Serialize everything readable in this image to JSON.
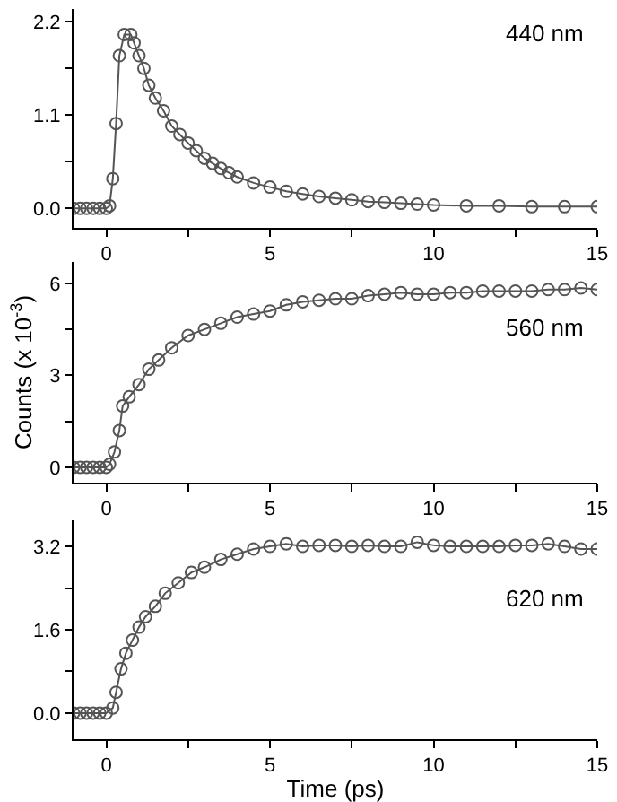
{
  "chart_data": [
    {
      "type": "line",
      "annotations": [
        "440 nm"
      ],
      "marker": "circle",
      "line_style": "solid",
      "grid": false,
      "tick_labels": "xy",
      "x": [
        -1,
        -0.8,
        -0.6,
        -0.4,
        -0.2,
        0,
        0.1,
        0.2,
        0.3,
        0.4,
        0.55,
        0.75,
        0.85,
        1,
        1.15,
        1.3,
        1.5,
        1.75,
        2,
        2.25,
        2.5,
        2.75,
        3,
        3.25,
        3.5,
        3.75,
        4,
        4.5,
        5,
        5.5,
        6,
        6.5,
        7,
        7.5,
        8,
        8.5,
        9,
        9.5,
        10,
        11,
        12,
        13,
        14,
        15
      ],
      "series": [
        {
          "color": "#555555",
          "values": [
            0,
            0,
            0,
            0,
            0,
            0,
            0.03,
            0.35,
            1.0,
            1.8,
            2.05,
            2.05,
            1.95,
            1.8,
            1.65,
            1.45,
            1.3,
            1.15,
            0.97,
            0.87,
            0.77,
            0.68,
            0.59,
            0.53,
            0.47,
            0.42,
            0.37,
            0.3,
            0.25,
            0.2,
            0.17,
            0.14,
            0.12,
            0.1,
            0.08,
            0.07,
            0.06,
            0.05,
            0.04,
            0.03,
            0.03,
            0.02,
            0.02,
            0.02
          ]
        }
      ],
      "xlim": [
        -1,
        15
      ],
      "xticks": [
        0,
        {
          "value": 2.5,
          "label": null
        },
        5,
        {
          "value": 7.5,
          "label": null
        },
        10,
        {
          "value": 12.5,
          "label": null
        },
        15
      ],
      "ylim": [
        -0.23,
        2.35
      ],
      "yticks": [
        {
          "value": 0,
          "label": "0.0"
        },
        {
          "value": 0.55,
          "label": null
        },
        {
          "value": 1.1,
          "label": "1.1"
        },
        {
          "value": 1.65,
          "label": null
        },
        {
          "value": 2.2,
          "label": "2.2"
        }
      ]
    },
    {
      "type": "line",
      "annotations": [
        "560 nm"
      ],
      "ylabel": "Counts (x 10$^{-3}$)",
      "marker": "circle",
      "line_style": "solid",
      "grid": false,
      "tick_labels": "xy",
      "x": [
        -1,
        -0.8,
        -0.6,
        -0.4,
        -0.2,
        0,
        0.1,
        0.25,
        0.4,
        0.5,
        0.7,
        1,
        1.3,
        1.6,
        2,
        2.5,
        3,
        3.5,
        4,
        4.5,
        5,
        5.5,
        6,
        6.5,
        7,
        7.5,
        8,
        8.5,
        9,
        9.5,
        10,
        10.5,
        11,
        11.5,
        12,
        12.5,
        13,
        13.5,
        14,
        14.5,
        15
      ],
      "series": [
        {
          "color": "#555555",
          "values": [
            0,
            0,
            0,
            0,
            0,
            0,
            0.1,
            0.5,
            1.2,
            2.0,
            2.3,
            2.7,
            3.2,
            3.5,
            3.9,
            4.3,
            4.5,
            4.7,
            4.9,
            5.0,
            5.1,
            5.3,
            5.4,
            5.45,
            5.5,
            5.5,
            5.6,
            5.65,
            5.7,
            5.65,
            5.65,
            5.7,
            5.7,
            5.75,
            5.75,
            5.75,
            5.75,
            5.8,
            5.8,
            5.85,
            5.8
          ]
        }
      ],
      "xlim": [
        -1,
        15
      ],
      "xticks": [
        0,
        {
          "value": 2.5,
          "label": null
        },
        5,
        {
          "value": 7.5,
          "label": null
        },
        10,
        {
          "value": 12.5,
          "label": null
        },
        15
      ],
      "ylim": [
        -0.5,
        6.7
      ],
      "yticks": [
        0,
        {
          "value": 1.5,
          "label": null
        },
        3,
        {
          "value": 4.5,
          "label": null
        },
        6
      ]
    },
    {
      "type": "line",
      "annotations": [
        "620 nm"
      ],
      "xlabel": "Time (ps)",
      "marker": "circle",
      "line_style": "solid",
      "grid": false,
      "tick_labels": "xy",
      "x": [
        -1,
        -0.8,
        -0.6,
        -0.4,
        -0.2,
        0,
        0.2,
        0.3,
        0.45,
        0.6,
        0.8,
        1,
        1.2,
        1.5,
        1.8,
        2.2,
        2.6,
        3,
        3.5,
        4,
        4.5,
        5,
        5.5,
        6,
        6.5,
        7,
        7.5,
        8,
        8.5,
        9,
        9.5,
        10,
        10.5,
        11,
        11.5,
        12,
        12.5,
        13,
        13.5,
        14,
        14.5,
        15
      ],
      "series": [
        {
          "color": "#555555",
          "values": [
            0,
            0,
            0,
            0,
            0,
            0,
            0.1,
            0.4,
            0.85,
            1.15,
            1.4,
            1.65,
            1.85,
            2.05,
            2.3,
            2.5,
            2.7,
            2.8,
            2.95,
            3.05,
            3.15,
            3.2,
            3.25,
            3.2,
            3.22,
            3.22,
            3.2,
            3.22,
            3.2,
            3.2,
            3.28,
            3.22,
            3.2,
            3.2,
            3.2,
            3.2,
            3.22,
            3.22,
            3.25,
            3.2,
            3.15,
            3.15
          ]
        }
      ],
      "xlim": [
        -1,
        15
      ],
      "xticks": [
        0,
        {
          "value": 2.5,
          "label": null
        },
        5,
        {
          "value": 7.5,
          "label": null
        },
        10,
        {
          "value": 12.5,
          "label": null
        },
        15
      ],
      "ylim": [
        -0.5,
        3.7
      ],
      "yticks": [
        {
          "value": 0,
          "label": "0.0"
        },
        {
          "value": 0.8,
          "label": null
        },
        {
          "value": 1.6,
          "label": "1.6"
        },
        {
          "value": 2.4,
          "label": null
        },
        {
          "value": 3.2,
          "label": "3.2"
        }
      ]
    }
  ]
}
